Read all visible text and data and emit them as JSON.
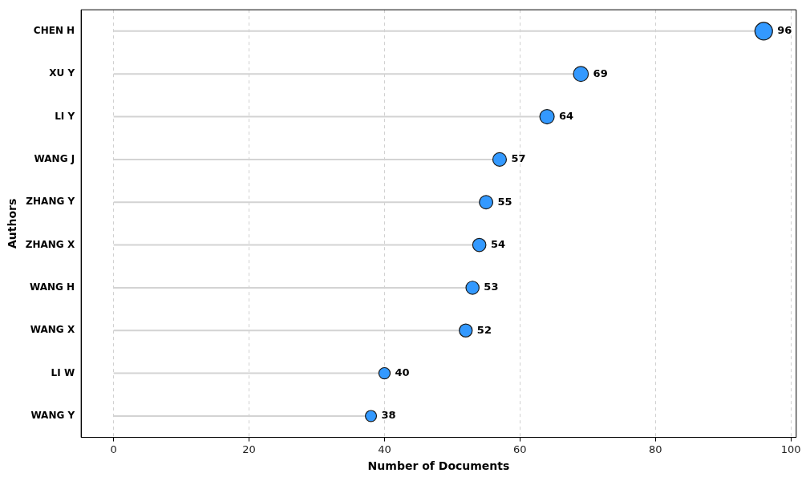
{
  "chart_data": {
    "type": "lollipop",
    "orientation": "horizontal",
    "xlabel": "Number of Documents",
    "ylabel": "Authors",
    "categories": [
      "CHEN H",
      "XU Y",
      "LI Y",
      "WANG J",
      "ZHANG Y",
      "ZHANG X",
      "WANG H",
      "WANG X",
      "LI W",
      "WANG Y"
    ],
    "values": [
      96,
      69,
      64,
      57,
      55,
      54,
      53,
      52,
      40,
      38
    ],
    "sizes": [
      1,
      0.719,
      0.667,
      0.594,
      0.573,
      0.563,
      0.552,
      0.542,
      0.417,
      0.396
    ],
    "color": "#3399ff",
    "xlim": [
      -4.8,
      100.8
    ],
    "xticks": [
      0,
      20,
      40,
      60,
      80,
      100
    ],
    "grid": "x",
    "data_labels": true,
    "marker": "circle",
    "legend": false
  }
}
